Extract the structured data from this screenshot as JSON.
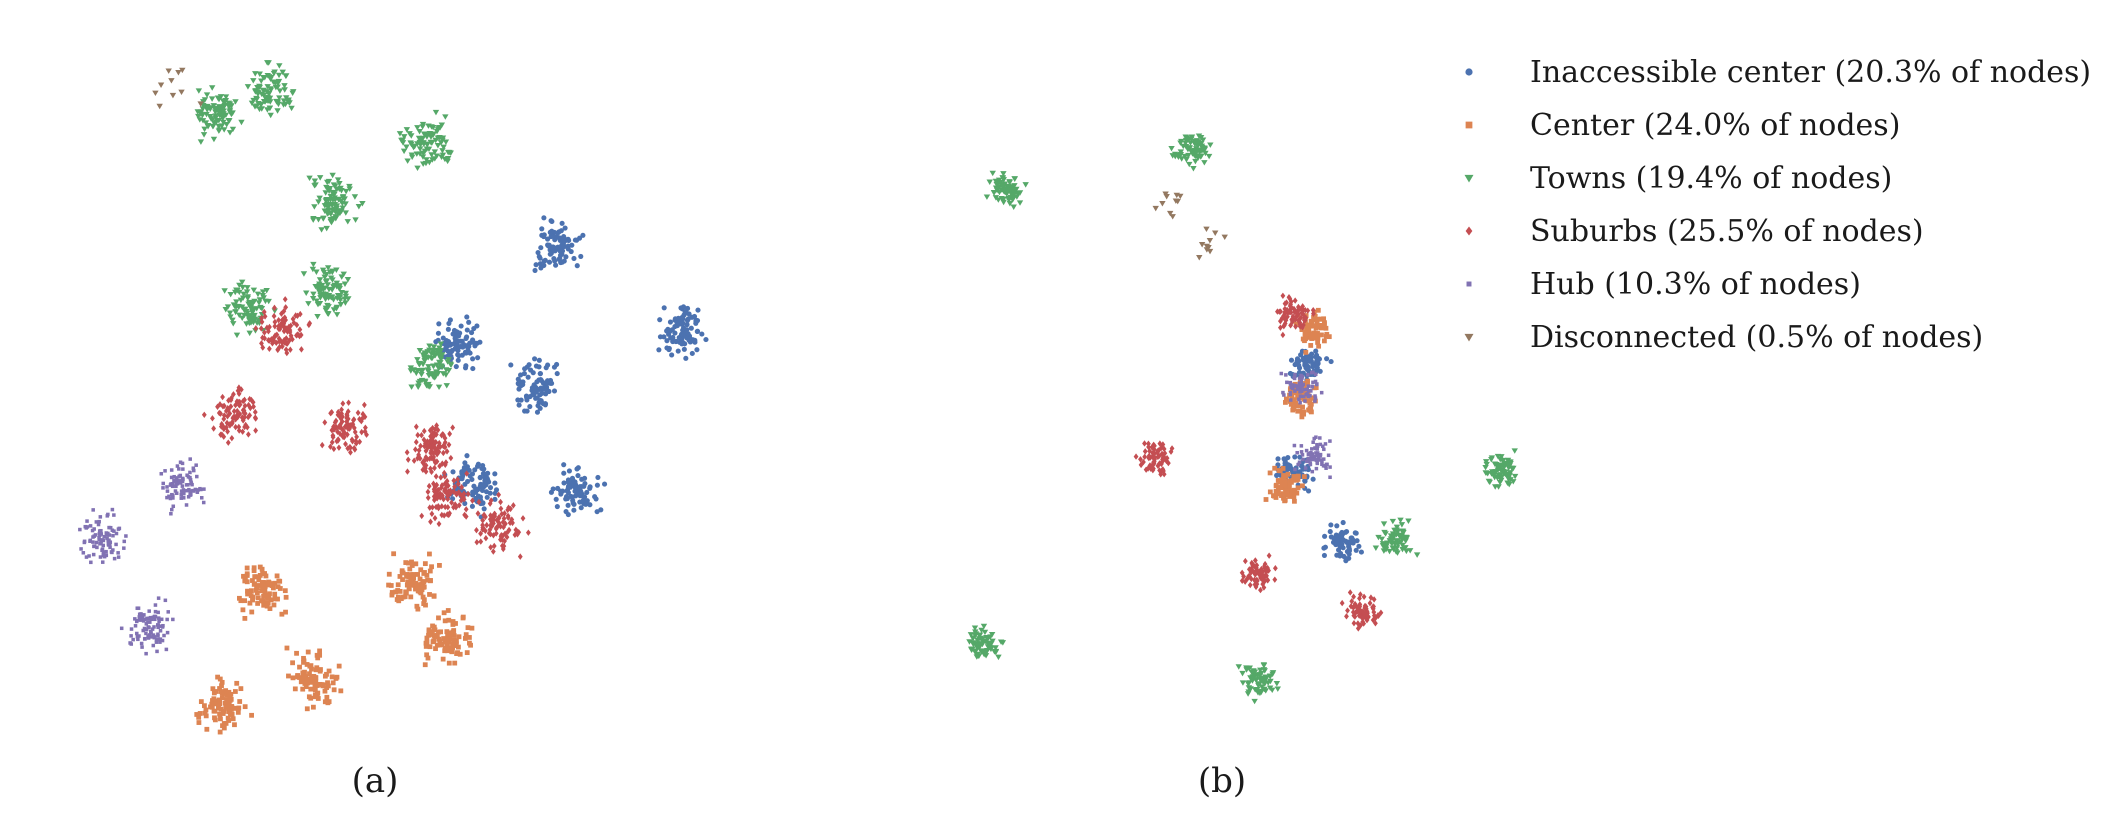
{
  "figure": {
    "caption_a": "(a)",
    "caption_b": "(b)"
  },
  "legend": [
    {
      "key": "inaccessible_center",
      "label": "Inaccessible center (20.3% of nodes)",
      "color": "#4c72b0",
      "marker": "circle"
    },
    {
      "key": "center",
      "label": "Center (24.0% of nodes)",
      "color": "#dd8452",
      "marker": "square"
    },
    {
      "key": "towns",
      "label": "Towns (19.4% of nodes)",
      "color": "#55a868",
      "marker": "triangle-down"
    },
    {
      "key": "suburbs",
      "label": "Suburbs (25.5% of nodes)",
      "color": "#c44e52",
      "marker": "diamond"
    },
    {
      "key": "hub",
      "label": "Hub (10.3% of nodes)",
      "color": "#8172b3",
      "marker": "square-small"
    },
    {
      "key": "disconnected",
      "label": "Disconnected (0.5% of nodes)",
      "color": "#937860",
      "marker": "triangle-down"
    }
  ],
  "chart_data": [
    {
      "type": "scatter",
      "panel": "(a)",
      "axes": "hidden",
      "grid": false,
      "series": [
        {
          "name": "Inaccessible center (20.3% of nodes)",
          "clusters": [
            [
              0.64,
              0.38
            ],
            [
              0.74,
              0.52
            ],
            [
              0.62,
              0.58
            ],
            [
              0.77,
              0.72
            ],
            [
              0.96,
              0.6
            ],
            [
              0.8,
              0.37
            ]
          ]
        },
        {
          "name": "Center (24.0% of nodes)",
          "clusters": [
            [
              0.26,
              0.06
            ],
            [
              0.4,
              0.1
            ],
            [
              0.32,
              0.23
            ],
            [
              0.55,
              0.24
            ],
            [
              0.6,
              0.16
            ]
          ]
        },
        {
          "name": "Towns (19.4% of nodes)",
          "clusters": [
            [
              0.34,
              0.94
            ],
            [
              0.25,
              0.91
            ],
            [
              0.43,
              0.78
            ],
            [
              0.57,
              0.87
            ],
            [
              0.42,
              0.66
            ],
            [
              0.3,
              0.63
            ],
            [
              0.58,
              0.55
            ]
          ]
        },
        {
          "name": "Suburbs (25.5% of nodes)",
          "clusters": [
            [
              0.35,
              0.6
            ],
            [
              0.45,
              0.46
            ],
            [
              0.58,
              0.43
            ],
            [
              0.68,
              0.32
            ],
            [
              0.6,
              0.36
            ],
            [
              0.28,
              0.48
            ]
          ]
        },
        {
          "name": "Hub (10.3% of nodes)",
          "clusters": [
            [
              0.08,
              0.3
            ],
            [
              0.15,
              0.18
            ],
            [
              0.2,
              0.38
            ]
          ]
        },
        {
          "name": "Disconnected (0.5% of nodes)",
          "clusters": [
            [
              0.18,
              0.95
            ]
          ]
        }
      ]
    },
    {
      "type": "scatter",
      "panel": "(b)",
      "axes": "hidden",
      "grid": false,
      "series": [
        {
          "name": "Inaccessible center (20.3% of nodes)",
          "clusters": [
            [
              0.62,
              0.55
            ],
            [
              0.6,
              0.4
            ],
            [
              0.67,
              0.3
            ]
          ]
        },
        {
          "name": "Center (24.0% of nodes)",
          "clusters": [
            [
              0.61,
              0.5
            ],
            [
              0.59,
              0.38
            ],
            [
              0.63,
              0.6
            ]
          ]
        },
        {
          "name": "Towns (19.4% of nodes)",
          "clusters": [
            [
              0.18,
              0.8
            ],
            [
              0.45,
              0.86
            ],
            [
              0.75,
              0.3
            ],
            [
              0.15,
              0.15
            ],
            [
              0.55,
              0.1
            ],
            [
              0.9,
              0.4
            ]
          ]
        },
        {
          "name": "Suburbs (25.5% of nodes)",
          "clusters": [
            [
              0.4,
              0.42
            ],
            [
              0.6,
              0.62
            ],
            [
              0.55,
              0.25
            ],
            [
              0.7,
              0.2
            ]
          ]
        },
        {
          "name": "Hub (10.3% of nodes)",
          "clusters": [
            [
              0.61,
              0.52
            ],
            [
              0.63,
              0.42
            ]
          ]
        },
        {
          "name": "Disconnected (0.5% of nodes)",
          "clusters": [
            [
              0.42,
              0.78
            ],
            [
              0.48,
              0.72
            ]
          ]
        }
      ]
    }
  ]
}
